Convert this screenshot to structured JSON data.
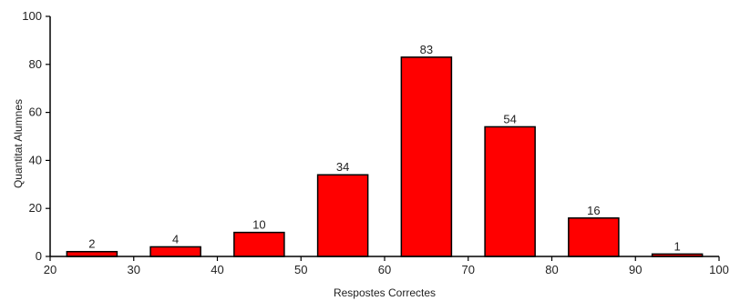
{
  "chart_data": {
    "type": "bar",
    "title": "",
    "xlabel": "Respostes Correctes",
    "ylabel": "Quantitat Alumnes",
    "xlim": [
      20,
      100
    ],
    "ylim": [
      0,
      100
    ],
    "x_ticks": [
      20,
      30,
      40,
      50,
      60,
      70,
      80,
      90,
      100
    ],
    "y_ticks": [
      0,
      20,
      40,
      60,
      80,
      100
    ],
    "bars": [
      {
        "x_start": 22,
        "x_end": 28,
        "value": 2,
        "label": "2"
      },
      {
        "x_start": 32,
        "x_end": 38,
        "value": 4,
        "label": "4"
      },
      {
        "x_start": 42,
        "x_end": 48,
        "value": 10,
        "label": "10"
      },
      {
        "x_start": 52,
        "x_end": 58,
        "value": 34,
        "label": "34"
      },
      {
        "x_start": 62,
        "x_end": 68,
        "value": 83,
        "label": "83"
      },
      {
        "x_start": 72,
        "x_end": 78,
        "value": 54,
        "label": "54"
      },
      {
        "x_start": 82,
        "x_end": 88,
        "value": 16,
        "label": "16"
      },
      {
        "x_start": 92,
        "x_end": 98,
        "value": 1,
        "label": "1"
      }
    ],
    "bar_color": "#ff0000",
    "bar_outline_color": "#000000",
    "grid": false,
    "legend": "none"
  }
}
